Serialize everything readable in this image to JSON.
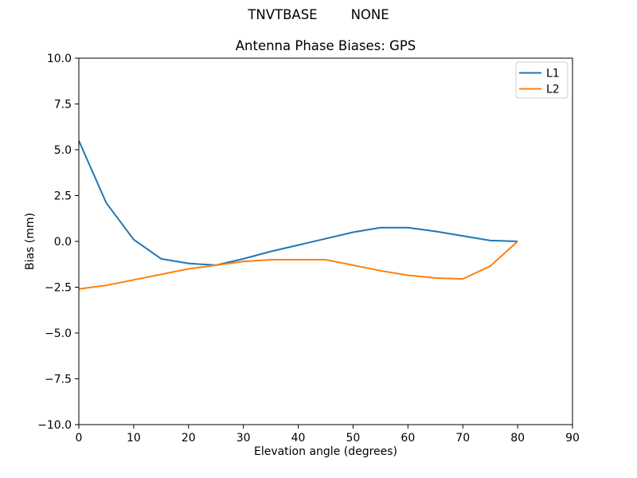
{
  "chart_data": {
    "type": "line",
    "suptitle": "TNVTBASE        NONE",
    "title": "Antenna Phase Biases: GPS",
    "xlabel": "Elevation angle (degrees)",
    "ylabel": "Bias (mm)",
    "xlim": [
      0,
      90
    ],
    "ylim": [
      -10,
      10
    ],
    "grid": false,
    "background": "#ffffff",
    "axis_color": "#000000",
    "legend": {
      "position": "upper right",
      "edge_color": "#cccccc",
      "entries": [
        "L1",
        "L2"
      ]
    },
    "x": [
      0,
      5,
      10,
      15,
      20,
      25,
      30,
      35,
      40,
      45,
      50,
      55,
      60,
      65,
      70,
      75,
      80
    ],
    "series": [
      {
        "name": "L1",
        "color": "#1f77b4",
        "values": [
          5.5,
          2.1,
          0.1,
          -0.95,
          -1.2,
          -1.3,
          -0.95,
          -0.55,
          -0.2,
          0.15,
          0.5,
          0.75,
          0.75,
          0.55,
          0.3,
          0.05,
          0.0
        ]
      },
      {
        "name": "L2",
        "color": "#ff7f0e",
        "values": [
          -2.6,
          -2.4,
          -2.1,
          -1.8,
          -1.5,
          -1.3,
          -1.1,
          -1.0,
          -1.0,
          -1.0,
          -1.3,
          -1.6,
          -1.85,
          -2.0,
          -2.05,
          -1.35,
          0.0
        ]
      }
    ],
    "xticks": [
      {
        "value": 0,
        "label": "0"
      },
      {
        "value": 10,
        "label": "10"
      },
      {
        "value": 20,
        "label": "20"
      },
      {
        "value": 30,
        "label": "30"
      },
      {
        "value": 40,
        "label": "40"
      },
      {
        "value": 50,
        "label": "50"
      },
      {
        "value": 60,
        "label": "60"
      },
      {
        "value": 70,
        "label": "70"
      },
      {
        "value": 80,
        "label": "80"
      },
      {
        "value": 90,
        "label": "90"
      }
    ],
    "yticks": [
      {
        "value": -10,
        "label": "−10.0"
      },
      {
        "value": -7.5,
        "label": "−7.5"
      },
      {
        "value": -5,
        "label": "−5.0"
      },
      {
        "value": -2.5,
        "label": "−2.5"
      },
      {
        "value": 0,
        "label": "0.0"
      },
      {
        "value": 2.5,
        "label": "2.5"
      },
      {
        "value": 5,
        "label": "5.0"
      },
      {
        "value": 7.5,
        "label": "7.5"
      },
      {
        "value": 10,
        "label": "10.0"
      }
    ]
  }
}
